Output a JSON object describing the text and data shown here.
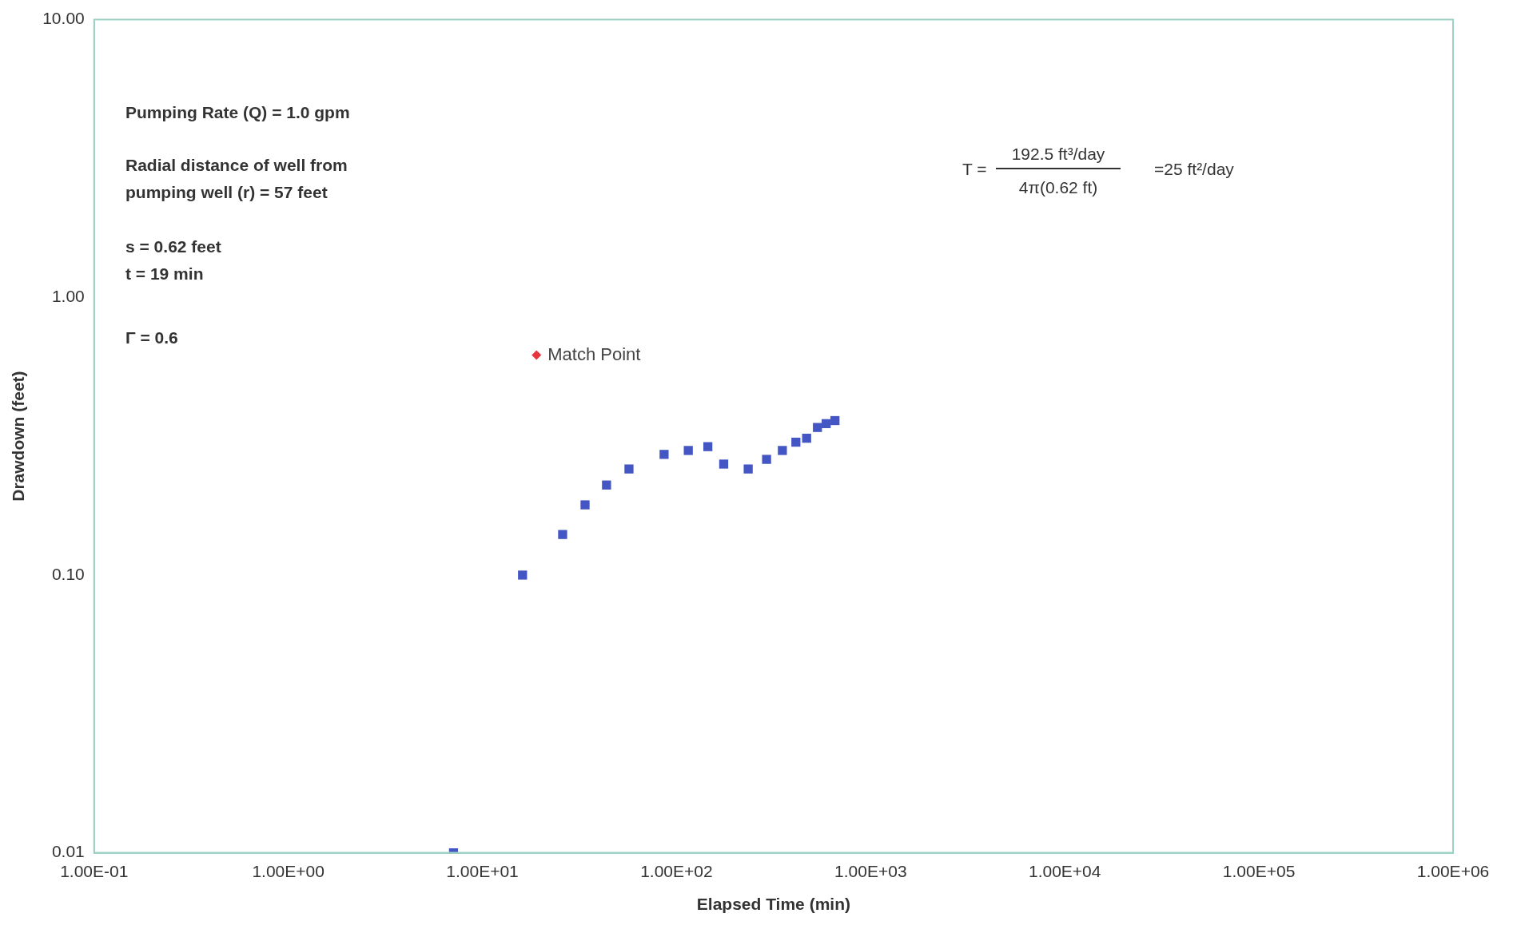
{
  "chart_data": {
    "type": "scatter",
    "xlabel": "Elapsed Time (min)",
    "ylabel": "Drawdown (feet)",
    "log": "xy",
    "grid": false,
    "legend": false,
    "marker": "square",
    "xlim": [
      0.1,
      1000000
    ],
    "ylim": [
      0.01,
      10
    ],
    "xticks": [
      {
        "value": 0.1,
        "label": "1.00E-01"
      },
      {
        "value": 1,
        "label": "1.00E+00"
      },
      {
        "value": 10,
        "label": "1.00E+01"
      },
      {
        "value": 100,
        "label": "1.00E+02"
      },
      {
        "value": 1000,
        "label": "1.00E+03"
      },
      {
        "value": 10000,
        "label": "1.00E+04"
      },
      {
        "value": 100000,
        "label": "1.00E+05"
      },
      {
        "value": 1000000,
        "label": "1.00E+06"
      }
    ],
    "yticks": [
      {
        "value": 0.01,
        "label": "0.01"
      },
      {
        "value": 0.1,
        "label": "0.10"
      },
      {
        "value": 1,
        "label": "1.00"
      },
      {
        "value": 10,
        "label": "10.00"
      }
    ],
    "series": [
      {
        "color": "#4456c4",
        "x": [
          7.1,
          16.1,
          25.9,
          33.8,
          43.6,
          56.9,
          86.3,
          115,
          145,
          175,
          234,
          291,
          351,
          412,
          468,
          532,
          590,
          655
        ],
        "values": [
          0.01,
          0.1,
          0.14,
          0.179,
          0.211,
          0.241,
          0.272,
          0.281,
          0.29,
          0.251,
          0.241,
          0.261,
          0.281,
          0.301,
          0.311,
          0.34,
          0.351,
          0.36
        ]
      },
      {
        "name": "Match Point",
        "color": "#e8343c",
        "marker": "diamond",
        "x": [
          19
        ],
        "values": [
          0.62
        ]
      }
    ],
    "annotations": [
      "Pumping Rate (Q) = 1.0 gpm",
      "Radial distance of well from pumping well (r) = 57 feet",
      "s = 0.62 feet",
      "t = 19 min",
      "Γ = 0.6",
      "T =",
      "192.5 ft³/day",
      "4π(0.62 ft)",
      "=25 ft²/day"
    ]
  }
}
